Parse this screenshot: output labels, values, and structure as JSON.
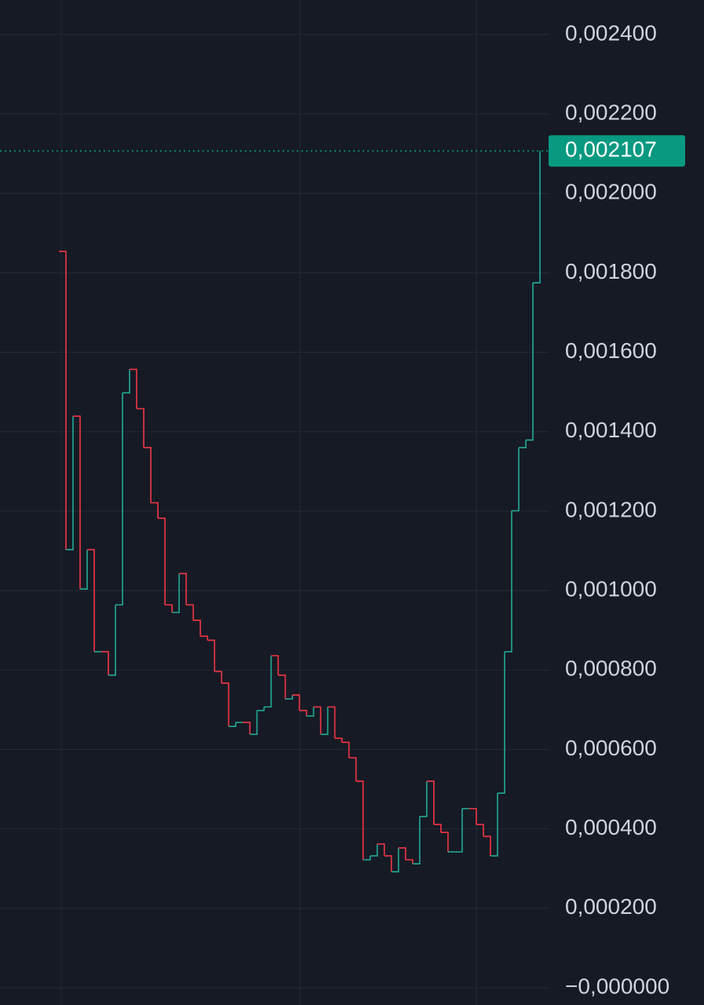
{
  "chart_data": {
    "type": "line",
    "series": [
      {
        "values": [
          0.001854,
          0.001103,
          0.001439,
          0.001004,
          0.001103,
          0.000846,
          0.000846,
          0.000787,
          0.000964,
          0.001498,
          0.001557,
          0.001458,
          0.00136,
          0.001221,
          0.001182,
          0.000964,
          0.000945,
          0.001043,
          0.000964,
          0.000925,
          0.000885,
          0.000875,
          0.000796,
          0.000767,
          0.000658,
          0.000668,
          0.000668,
          0.000638,
          0.000698,
          0.000707,
          0.000836,
          0.000787,
          0.000727,
          0.000737,
          0.000698,
          0.000684,
          0.000707,
          0.000638,
          0.000707,
          0.000628,
          0.000618,
          0.000579,
          0.00052,
          0.000322,
          0.000332,
          0.000362,
          0.000332,
          0.000292,
          0.000352,
          0.000322,
          0.000312,
          0.000431,
          0.00052,
          0.000411,
          0.000391,
          0.000342,
          0.000342,
          0.000451,
          0.000451,
          0.000411,
          0.000381,
          0.000332,
          0.00049,
          0.000846,
          0.001201,
          0.00136,
          0.001379,
          0.001775,
          0.002107
        ]
      }
    ],
    "up_color": "#22ab94",
    "down_color": "#f23645",
    "ylim": [
      -4.35e-05,
      0.002487
    ],
    "yticks": [
      {
        "value": 0.0024,
        "label": "0,002400"
      },
      {
        "value": 0.0022,
        "label": "0,002200"
      },
      {
        "value": 0.002,
        "label": "0,002000"
      },
      {
        "value": 0.0018,
        "label": "0,001800"
      },
      {
        "value": 0.0016,
        "label": "0,001600"
      },
      {
        "value": 0.0014,
        "label": "0,001400"
      },
      {
        "value": 0.0012,
        "label": "0,001200"
      },
      {
        "value": 0.001,
        "label": "0,001000"
      },
      {
        "value": 0.0008,
        "label": "0,000800"
      },
      {
        "value": 0.0006,
        "label": "0,000600"
      },
      {
        "value": 0.0004,
        "label": "0,000400"
      },
      {
        "value": 0.0002,
        "label": "0,000200"
      },
      {
        "value": 0,
        "label": "−0,000000"
      }
    ],
    "grid": true,
    "last_price": {
      "value": 0.002107,
      "label": "0,002107",
      "color": "#089981"
    }
  }
}
